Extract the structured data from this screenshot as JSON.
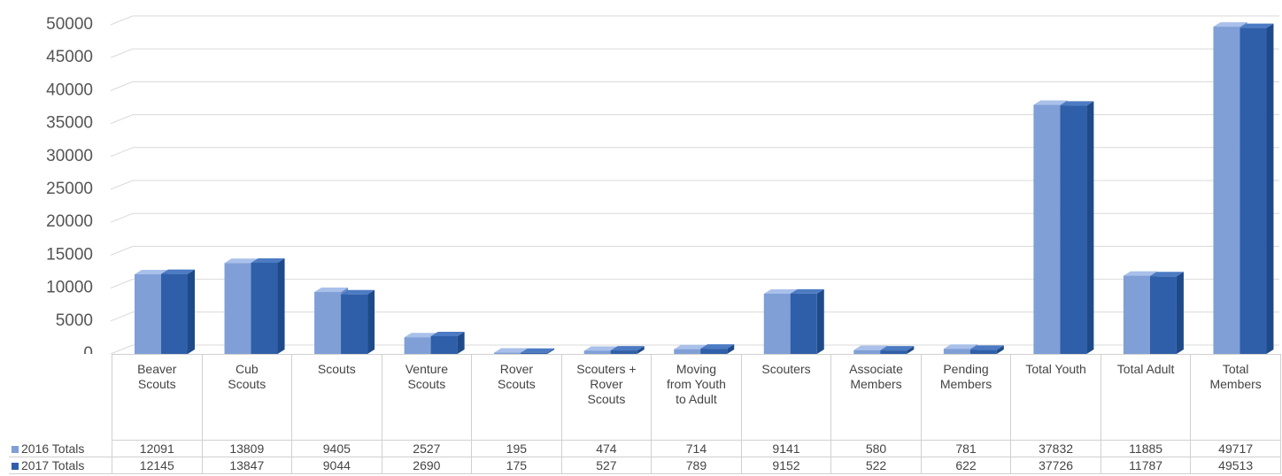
{
  "chart_data": {
    "type": "bar",
    "categories": [
      "Beaver Scouts",
      "Cub Scouts",
      "Scouts",
      "Venture Scouts",
      "Rover Scouts",
      "Scouters + Rover Scouts",
      "Moving from Youth to Adult",
      "Scouters",
      "Associate Members",
      "Pending Members",
      "Total Youth",
      "Total Adult",
      "Total Members"
    ],
    "series": [
      {
        "name": "2016 Totals",
        "color": "#7f9fd6",
        "values": [
          12091,
          13809,
          9405,
          2527,
          195,
          474,
          714,
          9141,
          580,
          781,
          37832,
          11885,
          49717
        ]
      },
      {
        "name": "2017 Totals",
        "color": "#2f5fa8",
        "values": [
          12145,
          13847,
          9044,
          2690,
          175,
          527,
          789,
          9152,
          522,
          622,
          37726,
          11787,
          49513
        ]
      }
    ],
    "ylim": [
      0,
      50000
    ],
    "yticks": [
      0,
      5000,
      10000,
      15000,
      20000,
      25000,
      30000,
      35000,
      40000,
      45000,
      50000
    ],
    "grid": true
  }
}
